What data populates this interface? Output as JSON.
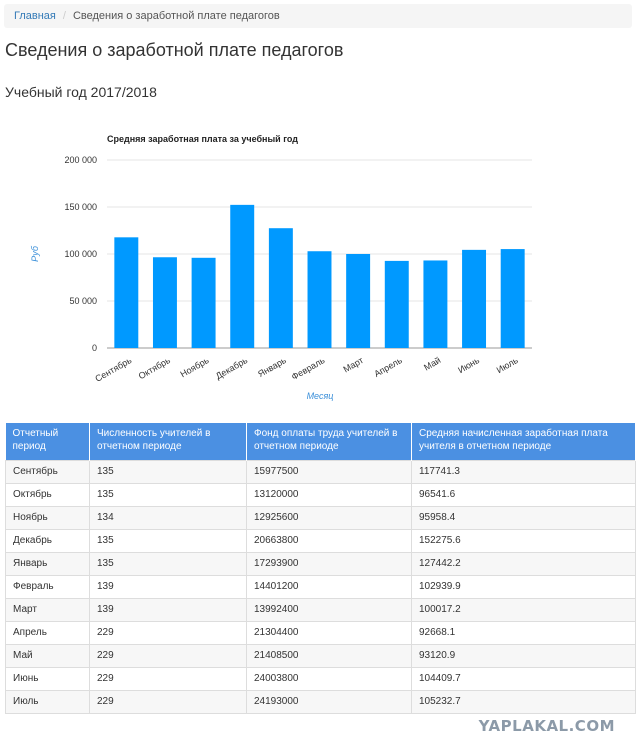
{
  "breadcrumb": {
    "home": "Главная",
    "current": "Сведения о заработной плате педагогов"
  },
  "page": {
    "title": "Сведения о заработной плате педагогов",
    "year": "Учебный год 2017/2018"
  },
  "chart_data": {
    "type": "bar",
    "title": "Средняя заработная плата за учебный год",
    "xlabel": "Месяц",
    "ylabel": "Руб",
    "categories": [
      "Сентябрь",
      "Октябрь",
      "Ноябрь",
      "Декабрь",
      "Январь",
      "Февраль",
      "Март",
      "Апрель",
      "Май",
      "Июнь",
      "Июль"
    ],
    "values": [
      117741.3,
      96541.6,
      95958.4,
      152275.6,
      127442.2,
      102939.9,
      100017.2,
      92668.1,
      93120.9,
      104409.7,
      105232.7
    ],
    "ylim": [
      0,
      200000
    ],
    "yticks": [
      "0",
      "50 000",
      "100 000",
      "150 000",
      "200 000"
    ],
    "grid": true,
    "bar_color": "#0099ff"
  },
  "table": {
    "headers": [
      "Отчетный период",
      "Численность учителей в отчетном периоде",
      "Фонд оплаты труда учителей в отчетном периоде",
      "Средняя начисленная заработная плата учителя в отчетном периоде"
    ],
    "rows": [
      [
        "Сентябрь",
        "135",
        "15977500",
        "117741.3"
      ],
      [
        "Октябрь",
        "135",
        "13120000",
        "96541.6"
      ],
      [
        "Ноябрь",
        "134",
        "12925600",
        "95958.4"
      ],
      [
        "Декабрь",
        "135",
        "20663800",
        "152275.6"
      ],
      [
        "Январь",
        "135",
        "17293900",
        "127442.2"
      ],
      [
        "Февраль",
        "139",
        "14401200",
        "102939.9"
      ],
      [
        "Март",
        "139",
        "13992400",
        "100017.2"
      ],
      [
        "Апрель",
        "229",
        "21304400",
        "92668.1"
      ],
      [
        "Май",
        "229",
        "21408500",
        "93120.9"
      ],
      [
        "Июнь",
        "229",
        "24003800",
        "104409.7"
      ],
      [
        "Июль",
        "229",
        "24193000",
        "105232.7"
      ]
    ]
  },
  "watermark": "YAPLAKAL.COM",
  "colors": {
    "header_bg": "#4b90e2",
    "link": "#337ab7"
  }
}
